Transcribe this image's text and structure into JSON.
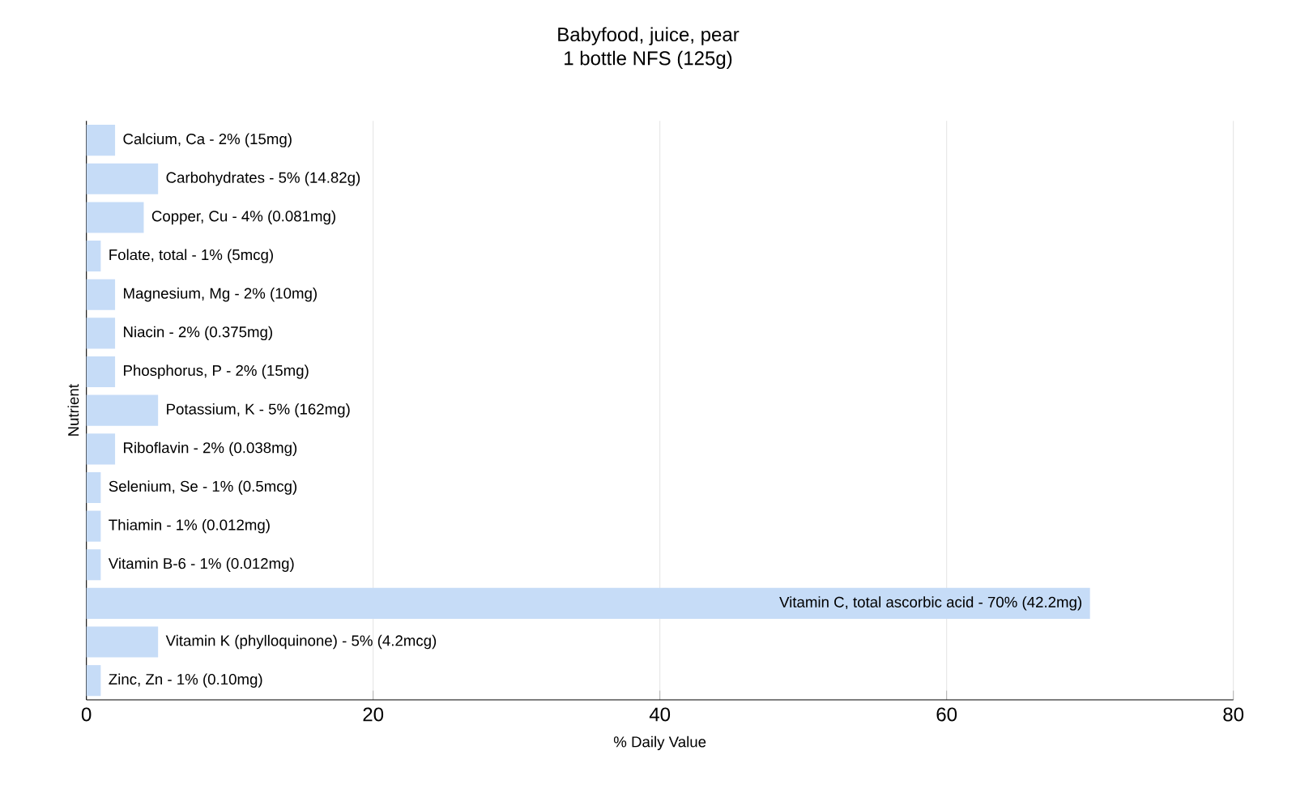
{
  "chart_data": {
    "type": "bar",
    "orientation": "horizontal",
    "title": "Babyfood, juice, pear",
    "subtitle": "1 bottle NFS (125g)",
    "xlabel": "% Daily Value",
    "ylabel": "Nutrient",
    "categories": [
      "Calcium, Ca - 2% (15mg)",
      "Carbohydrates - 5% (14.82g)",
      "Copper, Cu - 4% (0.081mg)",
      "Folate, total - 1% (5mcg)",
      "Magnesium, Mg - 2% (10mg)",
      "Niacin - 2% (0.375mg)",
      "Phosphorus, P - 2% (15mg)",
      "Potassium, K - 5% (162mg)",
      "Riboflavin - 2% (0.038mg)",
      "Selenium, Se - 1% (0.5mcg)",
      "Thiamin - 1% (0.012mg)",
      "Vitamin B-6 - 1% (0.012mg)",
      "Vitamin C, total ascorbic acid - 70% (42.2mg)",
      "Vitamin K (phylloquinone) - 5% (4.2mcg)",
      "Zinc, Zn - 1% (0.10mg)"
    ],
    "values": [
      2,
      5,
      4,
      1,
      2,
      2,
      2,
      5,
      2,
      1,
      1,
      1,
      70,
      5,
      1
    ],
    "color": "#c6dcf7",
    "xlim": [
      0,
      80
    ],
    "xticks": [
      0,
      20,
      40,
      60,
      80
    ],
    "grid": "x"
  }
}
